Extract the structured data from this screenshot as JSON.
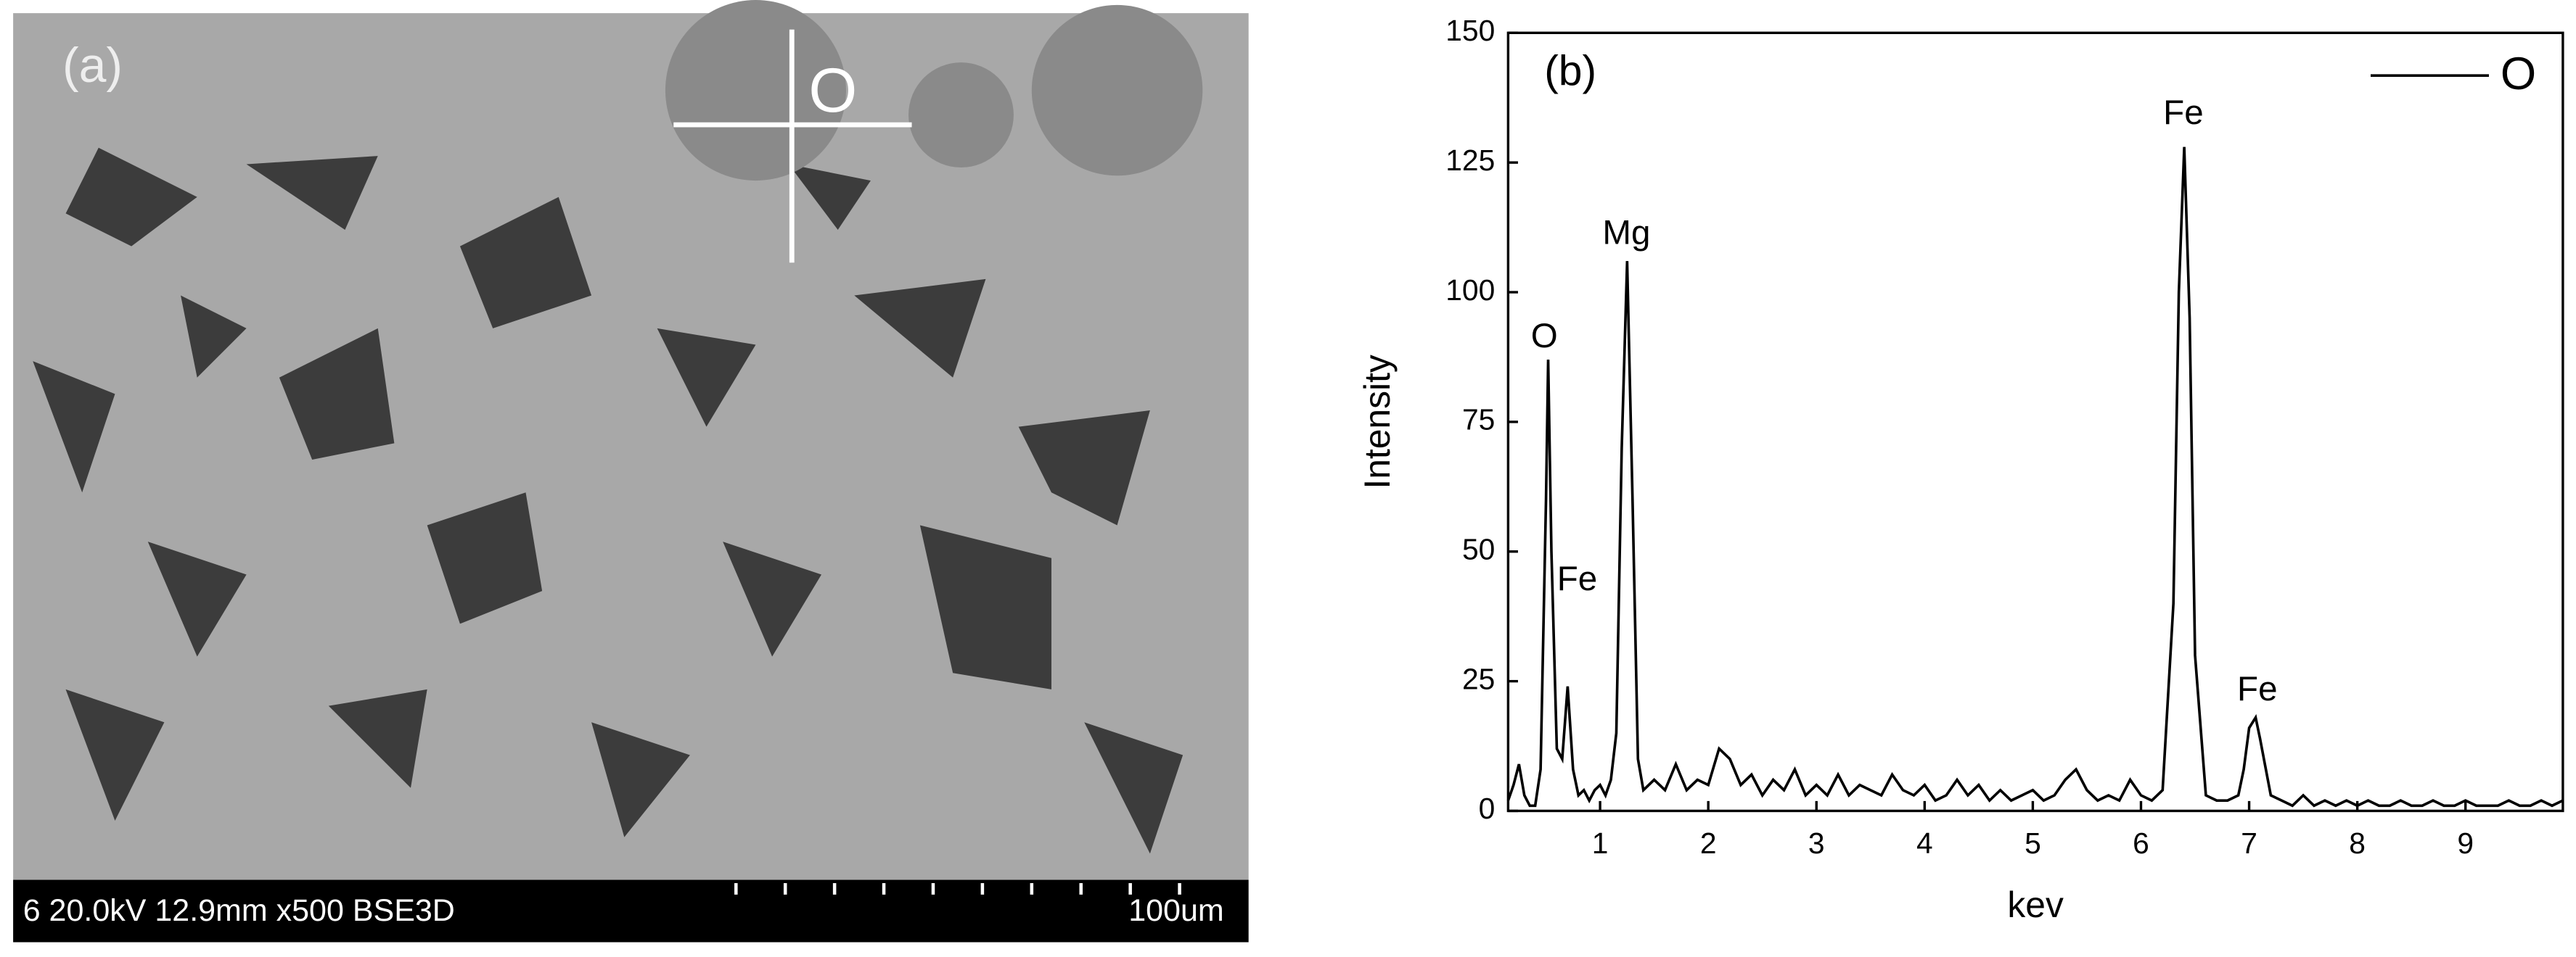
{
  "image_panel": {
    "label": "(a)",
    "marker": "O",
    "info": "6 20.0kV 12.9mm x500 BSE3D",
    "scale": "100um"
  },
  "chart_data": {
    "type": "line",
    "panel_label": "(b)",
    "x_label": "kev",
    "y_label": "Intensity",
    "xlim": [
      0.15,
      9.9
    ],
    "ylim": [
      0,
      150
    ],
    "xticks": [
      1,
      2,
      3,
      4,
      5,
      6,
      7,
      8,
      9
    ],
    "yticks": [
      0,
      25,
      50,
      75,
      100,
      125,
      150
    ],
    "legend": "top-right",
    "annotations": [
      "O",
      "Fe",
      "Mg",
      "Fe",
      "Fe"
    ],
    "x": [
      0.15,
      0.2,
      0.25,
      0.3,
      0.35,
      0.4,
      0.45,
      0.5,
      0.52,
      0.55,
      0.6,
      0.65,
      0.7,
      0.75,
      0.8,
      0.85,
      0.9,
      0.95,
      1.0,
      1.05,
      1.1,
      1.15,
      1.2,
      1.25,
      1.3,
      1.35,
      1.4,
      1.5,
      1.6,
      1.7,
      1.8,
      1.9,
      2.0,
      2.1,
      2.2,
      2.3,
      2.4,
      2.5,
      2.6,
      2.7,
      2.8,
      2.9,
      3.0,
      3.1,
      3.2,
      3.3,
      3.4,
      3.5,
      3.6,
      3.7,
      3.8,
      3.9,
      4.0,
      4.1,
      4.2,
      4.3,
      4.4,
      4.5,
      4.6,
      4.7,
      4.8,
      4.9,
      5.0,
      5.1,
      5.2,
      5.3,
      5.4,
      5.5,
      5.6,
      5.7,
      5.8,
      5.9,
      6.0,
      6.1,
      6.2,
      6.3,
      6.35,
      6.4,
      6.45,
      6.5,
      6.6,
      6.7,
      6.8,
      6.9,
      6.95,
      7.0,
      7.06,
      7.1,
      7.2,
      7.3,
      7.4,
      7.5,
      7.6,
      7.7,
      7.8,
      7.9,
      8.0,
      8.1,
      8.2,
      8.3,
      8.4,
      8.5,
      8.6,
      8.7,
      8.8,
      8.9,
      9.0,
      9.1,
      9.2,
      9.3,
      9.4,
      9.5,
      9.6,
      9.7,
      9.8,
      9.9
    ],
    "series": [
      {
        "name": "O",
        "color": "#000000",
        "values": [
          2,
          5,
          9,
          3,
          1,
          1,
          8,
          60,
          87,
          50,
          12,
          10,
          24,
          8,
          3,
          4,
          2,
          4,
          5,
          3,
          6,
          15,
          70,
          106,
          60,
          10,
          4,
          6,
          4,
          9,
          4,
          6,
          5,
          12,
          10,
          5,
          7,
          3,
          6,
          4,
          8,
          3,
          5,
          3,
          7,
          3,
          5,
          4,
          3,
          7,
          4,
          3,
          5,
          2,
          3,
          6,
          3,
          5,
          2,
          4,
          2,
          3,
          4,
          2,
          3,
          6,
          8,
          4,
          2,
          3,
          2,
          6,
          3,
          2,
          4,
          40,
          100,
          128,
          95,
          30,
          3,
          2,
          2,
          3,
          8,
          16,
          18,
          14,
          3,
          2,
          1,
          3,
          1,
          2,
          1,
          2,
          1,
          2,
          1,
          1,
          2,
          1,
          1,
          2,
          1,
          1,
          2,
          1,
          1,
          1,
          2,
          1,
          1,
          2,
          1,
          2
        ]
      }
    ]
  }
}
